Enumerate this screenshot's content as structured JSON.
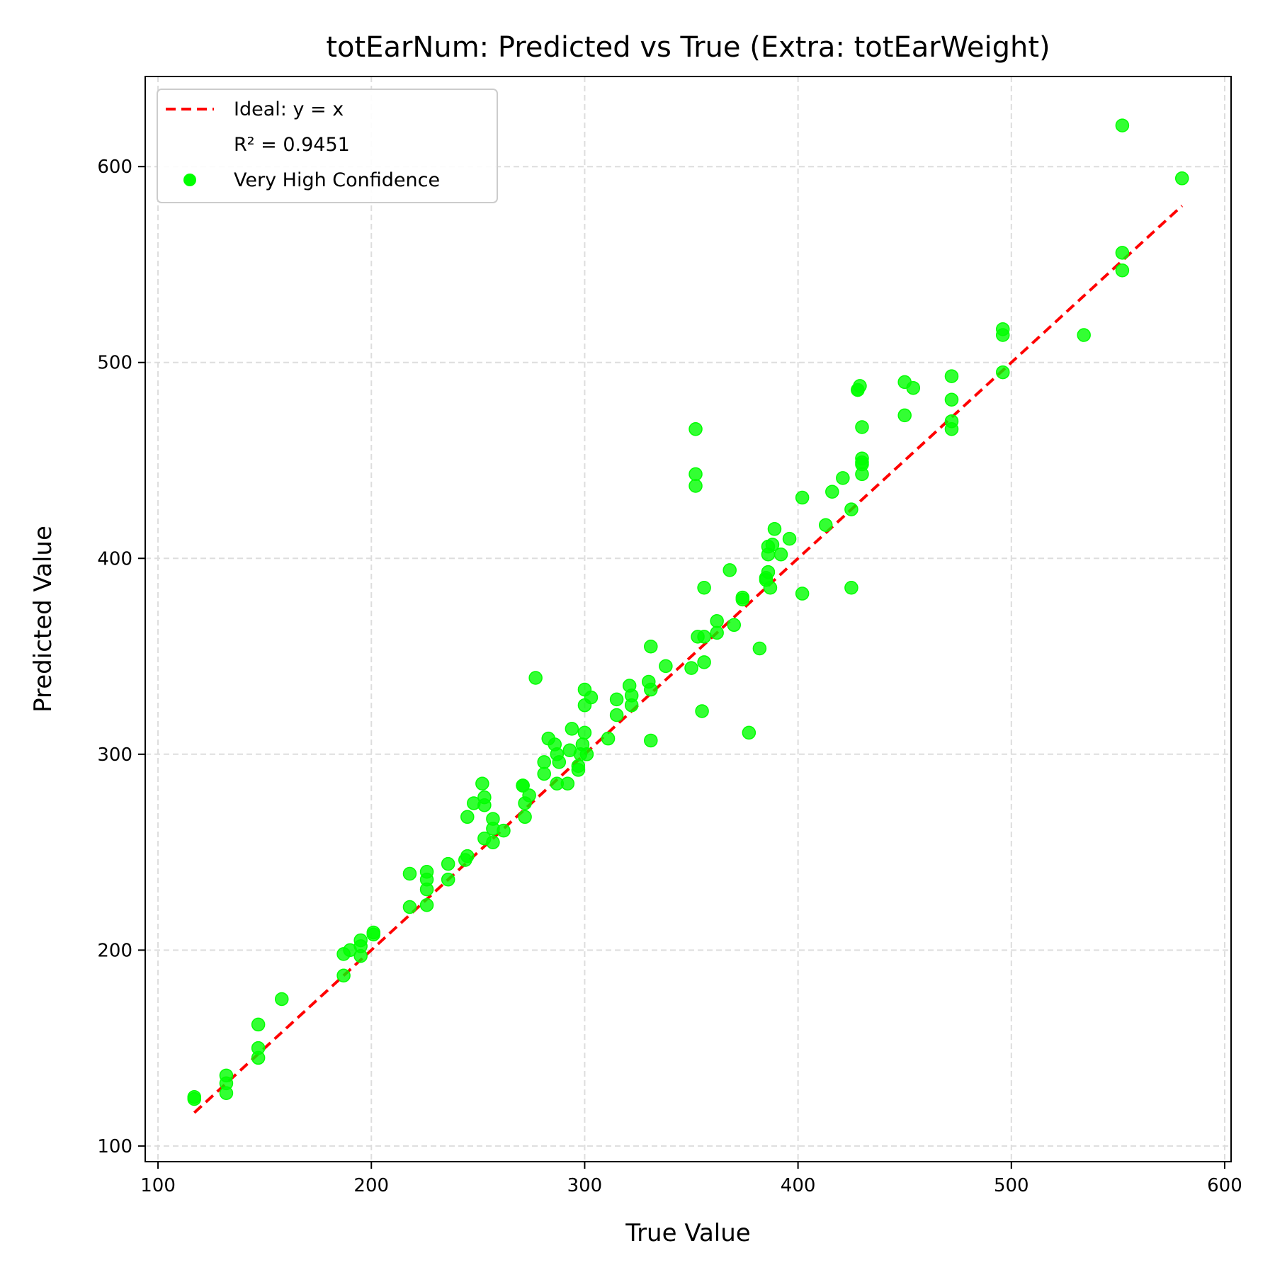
{
  "chart_data": {
    "type": "scatter",
    "title": "totEarNum: Predicted vs True (Extra: totEarWeight)",
    "xlabel": "True Value",
    "ylabel": "Predicted Value",
    "xlim": [
      94,
      603
    ],
    "ylim": [
      92,
      646
    ],
    "xticks": [
      100,
      200,
      300,
      400,
      500,
      600
    ],
    "yticks": [
      100,
      200,
      300,
      400,
      500,
      600
    ],
    "grid": true,
    "legend_position": "upper-left",
    "legend": {
      "ideal_label": "Ideal: y = x",
      "r2_label": "R² = 0.9451",
      "points_label": "Very High Confidence"
    },
    "colors": {
      "points": "#00ff00",
      "ideal_line": "#ff0000"
    },
    "ideal_line": {
      "x": [
        117,
        580
      ],
      "y": [
        117,
        580
      ]
    },
    "series": [
      {
        "name": "Very High Confidence",
        "x": [
          117,
          117,
          132,
          132,
          132,
          147,
          147,
          147,
          158,
          187,
          187,
          190,
          195,
          195,
          195,
          201,
          201,
          218,
          218,
          226,
          226,
          226,
          226,
          236,
          236,
          244,
          245,
          245,
          248,
          252,
          253,
          253,
          253,
          257,
          257,
          257,
          262,
          271,
          271,
          272,
          272,
          274,
          277,
          281,
          281,
          283,
          286,
          287,
          287,
          288,
          292,
          293,
          294,
          297,
          297,
          298,
          299,
          300,
          300,
          300,
          301,
          303,
          311,
          315,
          315,
          321,
          322,
          322,
          330,
          331,
          331,
          331,
          338,
          350,
          352,
          352,
          352,
          353,
          355,
          356,
          356,
          356,
          362,
          362,
          368,
          370,
          374,
          374,
          377,
          382,
          385,
          385,
          386,
          386,
          386,
          387,
          388,
          389,
          392,
          396,
          402,
          402,
          413,
          416,
          421,
          425,
          425,
          428,
          428,
          429,
          430,
          430,
          430,
          430,
          430,
          450,
          450,
          454,
          472,
          472,
          472,
          472,
          496,
          496,
          496,
          534,
          552,
          552,
          552,
          580
        ],
        "y": [
          124,
          125,
          127,
          132,
          136,
          145,
          150,
          162,
          175,
          187,
          198,
          200,
          197,
          202,
          205,
          208,
          209,
          222,
          239,
          223,
          231,
          236,
          240,
          236,
          244,
          246,
          248,
          268,
          275,
          285,
          274,
          278,
          257,
          255,
          262,
          267,
          261,
          284,
          284,
          268,
          275,
          279,
          339,
          290,
          296,
          308,
          305,
          285,
          300,
          296,
          285,
          302,
          313,
          292,
          294,
          300,
          305,
          325,
          333,
          311,
          300,
          329,
          308,
          320,
          328,
          335,
          325,
          330,
          337,
          355,
          307,
          333,
          345,
          344,
          466,
          443,
          437,
          360,
          322,
          347,
          385,
          360,
          362,
          368,
          394,
          366,
          380,
          379,
          311,
          354,
          389,
          390,
          393,
          402,
          406,
          385,
          407,
          415,
          402,
          410,
          431,
          382,
          417,
          434,
          441,
          425,
          385,
          486,
          486,
          488,
          443,
          448,
          451,
          449,
          467,
          490,
          473,
          487,
          493,
          481,
          470,
          466,
          517,
          514,
          495,
          514,
          621,
          556,
          547,
          594
        ]
      }
    ]
  }
}
